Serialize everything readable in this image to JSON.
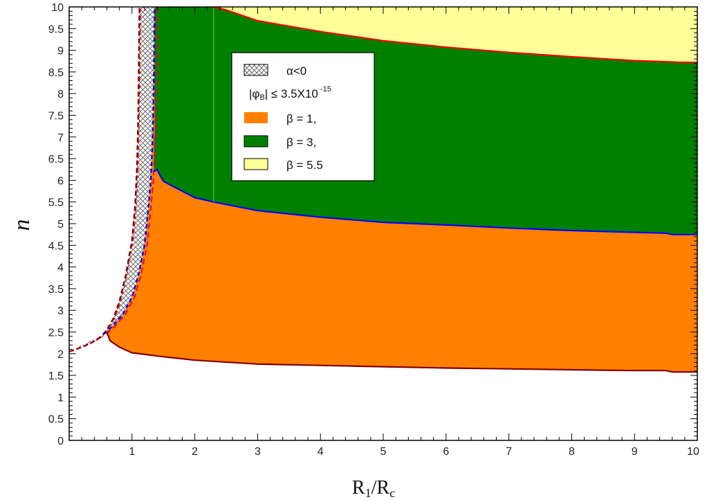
{
  "chart_data": {
    "type": "area",
    "xlabel": "R",
    "xlabel_sub1": "1",
    "xlabel_mid": "/R",
    "xlabel_sub2": "c",
    "ylabel": "n",
    "xlim": [
      0,
      10
    ],
    "ylim": [
      0,
      10
    ],
    "x_ticks": [
      1,
      2,
      3,
      4,
      5,
      6,
      7,
      8,
      9,
      10
    ],
    "y_ticks": [
      0,
      0.5,
      1,
      1.5,
      2,
      2.5,
      3,
      3.5,
      4,
      4.5,
      5,
      5.5,
      6,
      6.5,
      7,
      7.5,
      8,
      8.5,
      9,
      9.5,
      10
    ],
    "grid": false,
    "legend_position": "top-center",
    "legend": {
      "hatch_label": "α<0",
      "condition_prefix": "|φ",
      "condition_sub": "B",
      "condition_mid": "| ≤ 3.5X10",
      "condition_sup": " -15",
      "items": [
        {
          "label": "β = 1,",
          "color": "#ff8000"
        },
        {
          "label": "β =  3,",
          "color": "#008000"
        },
        {
          "label": "β =  5.5",
          "color": "#ffff99"
        }
      ]
    },
    "colors": {
      "orange": "#ff8000",
      "green": "#008000",
      "yellow": "#ffff99",
      "beta1_boundary": "#800000",
      "beta3_boundary": "#0000ff",
      "beta55_boundary": "#ff0000"
    },
    "hatch_region": {
      "name": "α<0",
      "left_edge": [
        [
          0.0,
          2.05
        ],
        [
          0.05,
          2.07
        ],
        [
          0.2,
          2.15
        ],
        [
          0.35,
          2.25
        ],
        [
          0.5,
          2.38
        ],
        [
          0.6,
          2.55
        ],
        [
          0.7,
          2.8
        ],
        [
          0.8,
          3.2
        ],
        [
          0.9,
          3.8
        ],
        [
          1.0,
          4.6
        ],
        [
          1.05,
          5.4
        ],
        [
          1.08,
          6.3
        ],
        [
          1.1,
          7.5
        ],
        [
          1.12,
          10
        ]
      ],
      "right_edge": [
        [
          0.55,
          2.45
        ],
        [
          0.7,
          2.65
        ],
        [
          0.85,
          2.9
        ],
        [
          1.0,
          3.3
        ],
        [
          1.1,
          3.8
        ],
        [
          1.2,
          4.5
        ],
        [
          1.25,
          5.2
        ],
        [
          1.3,
          6.0
        ],
        [
          1.33,
          7.0
        ],
        [
          1.35,
          8.5
        ],
        [
          1.36,
          10
        ]
      ]
    },
    "series": [
      {
        "name": "β = 1,",
        "color": "#ff8000",
        "boundary_x": [
          0.6,
          0.65,
          0.8,
          1.0,
          1.5,
          2.0,
          3.0,
          4.0,
          5.0,
          6.0,
          7.0,
          8.0,
          9.0,
          9.5,
          9.6,
          10.0
        ],
        "boundary_y": [
          2.5,
          2.3,
          2.15,
          2.02,
          1.93,
          1.85,
          1.76,
          1.73,
          1.7,
          1.67,
          1.65,
          1.63,
          1.61,
          1.61,
          1.58,
          1.58
        ]
      },
      {
        "name": "β =  3,",
        "color": "#008000",
        "boundary_x": [
          1.35,
          1.4,
          1.45,
          1.5,
          1.6,
          2.0,
          2.3,
          3.0,
          4.0,
          5.0,
          6.0,
          7.0,
          8.0,
          9.0,
          9.5,
          9.6,
          10.0
        ],
        "boundary_y": [
          6.2,
          6.25,
          6.1,
          5.98,
          5.9,
          5.6,
          5.5,
          5.3,
          5.15,
          5.03,
          4.97,
          4.9,
          4.84,
          4.8,
          4.78,
          4.75,
          4.75
        ]
      },
      {
        "name": "β =  5.5",
        "color": "#ffff99",
        "boundary_x": [
          2.3,
          2.5,
          3.0,
          4.0,
          5.0,
          6.0,
          7.0,
          8.0,
          9.0,
          9.6,
          9.7,
          10.0
        ],
        "boundary_y": [
          10.0,
          9.93,
          9.68,
          9.43,
          9.22,
          9.07,
          8.95,
          8.85,
          8.76,
          8.73,
          8.72,
          8.72
        ]
      }
    ]
  }
}
